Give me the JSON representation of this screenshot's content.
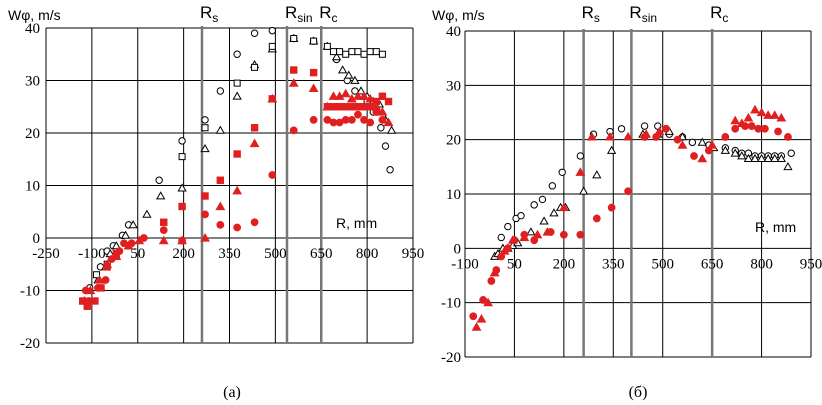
{
  "chart_data": [
    {
      "type": "scatter",
      "panel_label": "(a)",
      "ylabel": "Wφ, m/s",
      "xlabel": "R, mm",
      "xlim": [
        -250,
        950
      ],
      "ylim": [
        -20,
        40
      ],
      "x_ticks": [
        -250,
        -100,
        50,
        200,
        350,
        500,
        650,
        800,
        950
      ],
      "y_ticks": [
        -20,
        -10,
        0,
        10,
        20,
        30,
        40
      ],
      "vlines": [
        {
          "label": "R",
          "sub": "s",
          "x": 260
        },
        {
          "label": "R",
          "sub": "sin",
          "x": 538
        },
        {
          "label": "R",
          "sub": "c",
          "x": 650
        }
      ],
      "series": [
        {
          "name": "open-circle",
          "marker": "circle",
          "fill": "none",
          "color": "#000000",
          "x": [
            -107,
            -72,
            -50,
            -30,
            0,
            20,
            120,
            195,
            270,
            320,
            375,
            432,
            490,
            560,
            625,
            700,
            735,
            760,
            780,
            800,
            820,
            845,
            860,
            875
          ],
          "y": [
            -9.5,
            -5.5,
            -2.5,
            -1.5,
            0.5,
            2.5,
            11,
            18.5,
            22.5,
            28,
            35,
            39,
            39.5,
            38,
            37.5,
            34,
            30,
            28,
            27,
            26,
            24,
            21,
            17.5,
            13
          ]
        },
        {
          "name": "open-triangle",
          "marker": "triangle",
          "fill": "none",
          "color": "#000000",
          "x": [
            -80,
            -55,
            -40,
            -20,
            10,
            35,
            80,
            125,
            195,
            270,
            320,
            375,
            432,
            490,
            560,
            625,
            670,
            700,
            720,
            740,
            760,
            780,
            800,
            820,
            840,
            860,
            880
          ],
          "y": [
            -8,
            -5.5,
            -3,
            -1.5,
            0.5,
            2.5,
            4.5,
            8,
            9.5,
            17,
            20.5,
            27,
            33,
            36,
            38,
            37.5,
            36.5,
            34.5,
            32,
            31,
            30,
            28,
            27,
            26,
            25.5,
            22.5,
            20.5
          ]
        },
        {
          "name": "open-square",
          "marker": "square",
          "fill": "none",
          "color": "#000000",
          "x": [
            -85,
            -50,
            195,
            270,
            375,
            432,
            490,
            560,
            625,
            670,
            690,
            710,
            730,
            750,
            770,
            790,
            810,
            830,
            850
          ],
          "y": [
            -7,
            -5,
            15.5,
            21,
            29.5,
            32.5,
            36.5,
            38,
            37.5,
            36.5,
            35.5,
            35.5,
            35,
            35.5,
            35.5,
            35,
            35.5,
            35.5,
            35
          ]
        },
        {
          "name": "red-circle",
          "marker": "circle",
          "fill": "#e02020",
          "color": "#e02020",
          "x": [
            -120,
            -110,
            -80,
            -55,
            -35,
            -10,
            5,
            30,
            70,
            135,
            195,
            270,
            320,
            375,
            432,
            490,
            560,
            625,
            670,
            690,
            710,
            730,
            750,
            770,
            790,
            810,
            830,
            850
          ],
          "y": [
            -10,
            -12,
            -9.5,
            -8,
            -4,
            -2.5,
            -1,
            -1,
            0,
            1.5,
            -0.5,
            4.5,
            2.5,
            2,
            3,
            12,
            20.5,
            22.5,
            22.5,
            22,
            22,
            22.5,
            22.5,
            23.5,
            22.5,
            22,
            24,
            22.5
          ]
        },
        {
          "name": "red-triangle",
          "marker": "triangle",
          "fill": "#e02020",
          "color": "#e02020",
          "x": [
            -125,
            -105,
            -75,
            -50,
            -20,
            20,
            55,
            135,
            195,
            270,
            320,
            375,
            432,
            490,
            560,
            625,
            670,
            690,
            710,
            730,
            750,
            770,
            790,
            810,
            830,
            850,
            870
          ],
          "y": [
            -12,
            -10,
            -8,
            -5,
            -3.5,
            -1.5,
            -0.5,
            -0.5,
            -0.5,
            0,
            6,
            9,
            18,
            26.5,
            29.5,
            28.5,
            25,
            27,
            27,
            27.5,
            26.5,
            27,
            27,
            26.5,
            25,
            24,
            22
          ]
        },
        {
          "name": "red-square",
          "marker": "square",
          "fill": "#e02020",
          "color": "#e02020",
          "x": [
            -130,
            -115,
            -90,
            -70,
            -50,
            -20,
            135,
            195,
            270,
            320,
            375,
            432,
            490,
            560,
            625,
            670,
            690,
            710,
            730,
            750,
            770,
            790,
            810,
            830,
            850,
            870
          ],
          "y": [
            -12,
            -13,
            -12,
            -9.5,
            -5.5,
            -3,
            3,
            6,
            8,
            11,
            16,
            21,
            26.5,
            32,
            31.5,
            25,
            25,
            25,
            25,
            25,
            25,
            25,
            25,
            26,
            27,
            26
          ]
        }
      ]
    },
    {
      "type": "scatter",
      "panel_label": "(б)",
      "ylabel": "Wφ, m/s",
      "xlabel": "R, mm",
      "xlim": [
        -100,
        950
      ],
      "ylim": [
        -20,
        40
      ],
      "x_ticks": [
        -100,
        50,
        200,
        350,
        500,
        650,
        800,
        950
      ],
      "y_ticks": [
        -20,
        -10,
        0,
        10,
        20,
        30,
        40
      ],
      "vlines": [
        {
          "label": "R",
          "sub": "s",
          "x": 260
        },
        {
          "label": "R",
          "sub": "sin",
          "x": 405
        },
        {
          "label": "R",
          "sub": "c",
          "x": 650
        }
      ],
      "series": [
        {
          "name": "open-circle",
          "marker": "circle",
          "fill": "none",
          "color": "#000000",
          "x": [
            10,
            30,
            55,
            70,
            110,
            135,
            165,
            195,
            250,
            290,
            340,
            375,
            445,
            485,
            520,
            560,
            590,
            640,
            690,
            720,
            740,
            760,
            780,
            800,
            820,
            840,
            860,
            890
          ],
          "y": [
            2,
            4,
            5.5,
            6,
            8,
            9,
            11.5,
            14,
            17,
            21,
            21.5,
            22,
            22.5,
            22.5,
            21,
            20.5,
            19.5,
            19,
            18.5,
            18,
            17.5,
            17.5,
            17,
            17,
            17,
            17,
            17,
            17.5
          ]
        },
        {
          "name": "open-triangle",
          "marker": "triangle",
          "fill": "none",
          "color": "#000000",
          "x": [
            -10,
            0,
            15,
            30,
            45,
            60,
            80,
            100,
            140,
            170,
            190,
            205,
            260,
            300,
            345,
            395,
            440,
            485,
            520,
            560,
            620,
            655,
            690,
            720,
            740,
            760,
            780,
            800,
            820,
            840,
            860,
            880
          ],
          "y": [
            -1.5,
            -1,
            0,
            0,
            0.5,
            1,
            2,
            3,
            5,
            6.5,
            7.5,
            7.5,
            10.5,
            13.5,
            18,
            20.5,
            21,
            21,
            21.5,
            20.5,
            19.5,
            18.5,
            18,
            17.5,
            17,
            16.5,
            16.5,
            16.5,
            16.5,
            16.5,
            16.5,
            15
          ]
        },
        {
          "name": "red-circle",
          "marker": "circle",
          "fill": "#e02020",
          "color": "#e02020",
          "x": [
            -75,
            -45,
            -20,
            -5,
            10,
            30,
            50,
            80,
            110,
            160,
            200,
            250,
            300,
            345,
            395,
            445,
            480,
            510,
            545,
            595,
            640,
            690,
            720,
            750,
            770,
            790,
            810,
            850,
            880
          ],
          "y": [
            -12.5,
            -9.5,
            -6,
            -4,
            -1.5,
            0,
            1.5,
            2.5,
            1.5,
            3,
            2.5,
            2.5,
            5.5,
            7.5,
            10.5,
            20.5,
            20.5,
            22,
            20,
            17,
            18,
            20.5,
            22,
            22.5,
            22.5,
            22,
            22,
            21.5,
            20.5
          ]
        },
        {
          "name": "red-triangle",
          "marker": "triangle",
          "fill": "#e02020",
          "color": "#e02020",
          "x": [
            -65,
            -50,
            -30,
            -10,
            20,
            45,
            80,
            120,
            150,
            200,
            250,
            285,
            340,
            395,
            450,
            490,
            560,
            620,
            650,
            720,
            740,
            760,
            780,
            800,
            820,
            840,
            860
          ],
          "y": [
            -14.5,
            -13,
            -10,
            -4.5,
            -0.5,
            1.5,
            2,
            2.5,
            3,
            7.5,
            14,
            20.5,
            20.5,
            20.5,
            21,
            21.5,
            19,
            16.5,
            19,
            23.5,
            23,
            24,
            25.5,
            25,
            24.5,
            24.5,
            24
          ]
        }
      ]
    }
  ]
}
